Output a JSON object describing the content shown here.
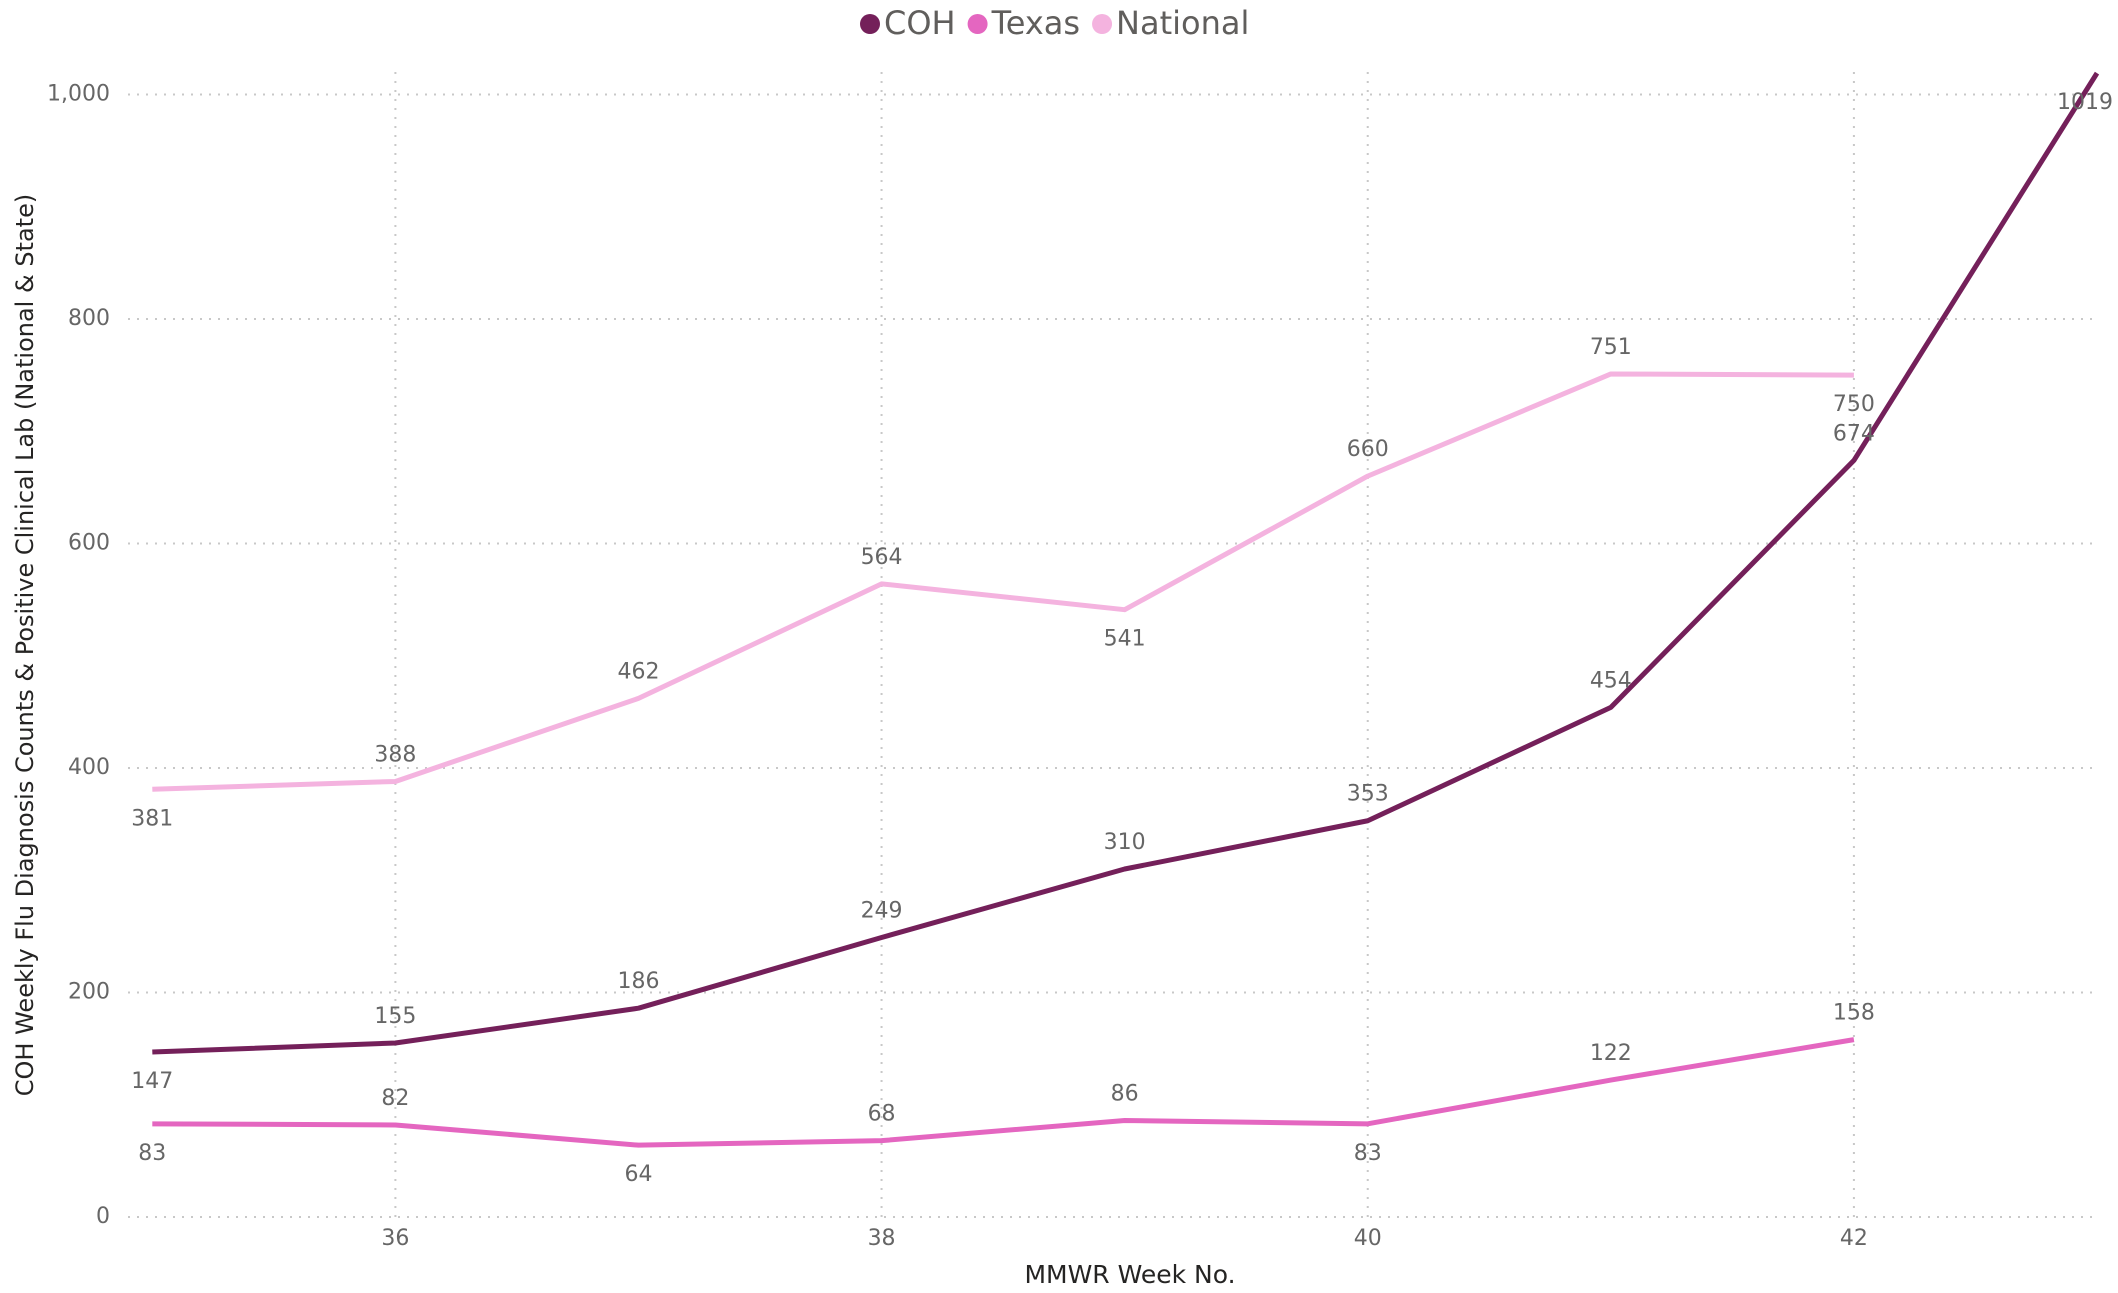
{
  "chart_data": {
    "type": "line",
    "x_label": "MMWR Week No.",
    "y_label": "COH Weekly Flu Diagnosis Counts & Positive Clinical Lab (National & State)",
    "x": [
      35,
      36,
      37,
      38,
      39,
      40,
      41,
      42,
      43
    ],
    "series": [
      {
        "name": "COH",
        "color": "#74205a",
        "values": [
          147,
          155,
          186,
          249,
          310,
          353,
          454,
          674,
          1019
        ]
      },
      {
        "name": "Texas",
        "color": "#e466c0",
        "values": [
          83,
          82,
          64,
          68,
          86,
          83,
          122,
          158,
          null
        ]
      },
      {
        "name": "National",
        "color": "#f4b3df",
        "values": [
          381,
          388,
          462,
          564,
          541,
          660,
          751,
          750,
          null
        ]
      }
    ],
    "xlim": [
      34.9,
      43
    ],
    "ylim": [
      0,
      1020
    ],
    "xticks": [
      36,
      38,
      40,
      42
    ],
    "yticks": [
      0,
      200,
      400,
      600,
      800,
      {
        "value": 1000,
        "label": "1,000"
      }
    ],
    "grid": true,
    "legend": "top"
  }
}
